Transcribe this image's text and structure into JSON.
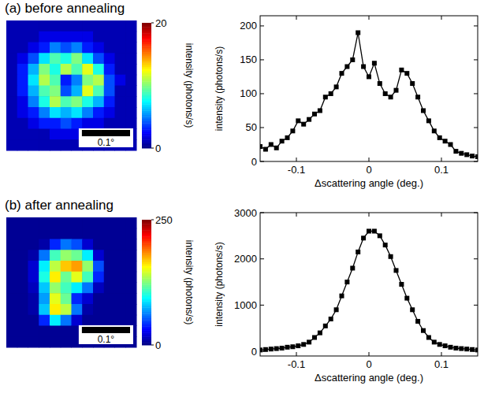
{
  "chart_data": [
    {
      "type": "heatmap",
      "title": "(a) before annealing",
      "colorbar": {
        "range": [
          0,
          20
        ],
        "ticks": [
          0,
          20
        ],
        "label": "intensity (photons/s)"
      },
      "scale_bar": {
        "value": 0.1,
        "label": "0.1°"
      },
      "extent_deg": 0.27,
      "cells": [
        [
          1,
          1,
          1,
          1,
          1,
          1,
          1,
          1,
          1,
          1,
          1,
          1
        ],
        [
          1,
          1,
          1,
          2,
          2,
          2,
          2,
          2,
          1,
          1,
          1,
          1
        ],
        [
          1,
          1,
          2,
          3,
          5,
          4,
          5,
          3,
          2,
          1,
          1,
          1
        ],
        [
          1,
          2,
          4,
          7,
          9,
          8,
          10,
          7,
          4,
          2,
          1,
          1
        ],
        [
          1,
          3,
          6,
          10,
          8,
          11,
          9,
          12,
          8,
          3,
          1,
          1
        ],
        [
          1,
          3,
          7,
          11,
          9,
          3,
          5,
          10,
          11,
          4,
          2,
          1
        ],
        [
          1,
          3,
          6,
          9,
          10,
          4,
          6,
          12,
          9,
          4,
          1,
          1
        ],
        [
          1,
          2,
          5,
          8,
          11,
          9,
          10,
          8,
          6,
          3,
          1,
          1
        ],
        [
          1,
          2,
          3,
          5,
          7,
          6,
          7,
          5,
          3,
          2,
          1,
          1
        ],
        [
          1,
          1,
          2,
          3,
          3,
          4,
          3,
          2,
          2,
          1,
          1,
          1
        ],
        [
          1,
          1,
          1,
          1,
          2,
          2,
          2,
          1,
          1,
          1,
          1,
          1
        ],
        [
          1,
          1,
          1,
          1,
          1,
          1,
          1,
          1,
          1,
          1,
          1,
          1
        ]
      ]
    },
    {
      "type": "line",
      "x_label": "Δscattering angle (deg.)",
      "y_label": "intensity (photons/s)",
      "color": "#000000",
      "marker": "square",
      "line_style": "solid",
      "x": [
        -0.15,
        -0.1425,
        -0.135,
        -0.1275,
        -0.12,
        -0.1125,
        -0.105,
        -0.0975,
        -0.09,
        -0.0825,
        -0.075,
        -0.0675,
        -0.06,
        -0.0525,
        -0.045,
        -0.0375,
        -0.03,
        -0.0225,
        -0.015,
        -0.0075,
        0,
        0.0075,
        0.015,
        0.0225,
        0.03,
        0.0375,
        0.045,
        0.0525,
        0.06,
        0.0675,
        0.075,
        0.0825,
        0.09,
        0.0975,
        0.105,
        0.1125,
        0.12,
        0.1275,
        0.135,
        0.1425,
        0.15
      ],
      "values": [
        22,
        18,
        25,
        20,
        30,
        35,
        45,
        60,
        55,
        62,
        70,
        75,
        95,
        100,
        110,
        130,
        140,
        150,
        190,
        140,
        125,
        145,
        115,
        100,
        95,
        105,
        135,
        130,
        115,
        95,
        75,
        60,
        45,
        35,
        30,
        25,
        15,
        12,
        10,
        8,
        7
      ],
      "xlim": [
        -0.15,
        0.15
      ],
      "xticks": [
        -0.1,
        0,
        0.1
      ],
      "ylim": [
        0,
        215
      ],
      "yticks": [
        0,
        50,
        100,
        150,
        200
      ]
    },
    {
      "type": "heatmap",
      "title": "(b) after annealing",
      "colorbar": {
        "range": [
          0,
          250
        ],
        "ticks": [
          0,
          250
        ],
        "label": "intensity (photons/s)"
      },
      "scale_bar": {
        "value": 0.1,
        "label": "0.1°"
      },
      "extent_deg": 0.27,
      "cells": [
        [
          5,
          5,
          5,
          5,
          5,
          5,
          5,
          5,
          5,
          5,
          5,
          5
        ],
        [
          5,
          5,
          5,
          5,
          5,
          5,
          5,
          5,
          5,
          5,
          5,
          5
        ],
        [
          5,
          5,
          5,
          10,
          40,
          60,
          50,
          20,
          5,
          5,
          5,
          5
        ],
        [
          5,
          5,
          10,
          60,
          110,
          130,
          120,
          90,
          20,
          5,
          5,
          5
        ],
        [
          5,
          5,
          20,
          90,
          140,
          170,
          180,
          130,
          50,
          5,
          5,
          5
        ],
        [
          5,
          5,
          20,
          100,
          160,
          120,
          150,
          110,
          40,
          5,
          5,
          5
        ],
        [
          5,
          5,
          15,
          80,
          130,
          110,
          90,
          60,
          15,
          5,
          5,
          5
        ],
        [
          5,
          5,
          10,
          70,
          150,
          120,
          40,
          20,
          5,
          5,
          5,
          5
        ],
        [
          5,
          5,
          10,
          80,
          160,
          140,
          60,
          10,
          5,
          5,
          5,
          5
        ],
        [
          5,
          5,
          5,
          40,
          90,
          60,
          20,
          5,
          5,
          5,
          5,
          5
        ],
        [
          5,
          5,
          5,
          5,
          5,
          5,
          5,
          5,
          5,
          5,
          5,
          5
        ],
        [
          5,
          5,
          5,
          5,
          5,
          5,
          5,
          5,
          5,
          5,
          5,
          5
        ]
      ]
    },
    {
      "type": "line",
      "x_label": "Δscattering angle (deg.)",
      "y_label": "intensity (photons/s)",
      "color": "#000000",
      "marker": "square",
      "line_style": "solid",
      "x": [
        -0.15,
        -0.1425,
        -0.135,
        -0.1275,
        -0.12,
        -0.1125,
        -0.105,
        -0.0975,
        -0.09,
        -0.0825,
        -0.075,
        -0.0675,
        -0.06,
        -0.0525,
        -0.045,
        -0.0375,
        -0.03,
        -0.0225,
        -0.015,
        -0.0075,
        0,
        0.0075,
        0.015,
        0.0225,
        0.03,
        0.0375,
        0.045,
        0.0525,
        0.06,
        0.0675,
        0.075,
        0.0825,
        0.09,
        0.0975,
        0.105,
        0.1125,
        0.12,
        0.1275,
        0.135,
        0.1425,
        0.15
      ],
      "values": [
        30,
        40,
        50,
        60,
        70,
        90,
        100,
        120,
        150,
        200,
        300,
        400,
        550,
        700,
        900,
        1200,
        1500,
        1800,
        2150,
        2450,
        2600,
        2600,
        2500,
        2300,
        2050,
        1750,
        1450,
        1150,
        900,
        650,
        450,
        300,
        200,
        150,
        120,
        90,
        70,
        60,
        50,
        40,
        30
      ],
      "xlim": [
        -0.15,
        0.15
      ],
      "xticks": [
        -0.1,
        0,
        0.1
      ],
      "ylim": [
        -100,
        3000
      ],
      "yticks": [
        0,
        1000,
        2000,
        3000
      ]
    }
  ]
}
